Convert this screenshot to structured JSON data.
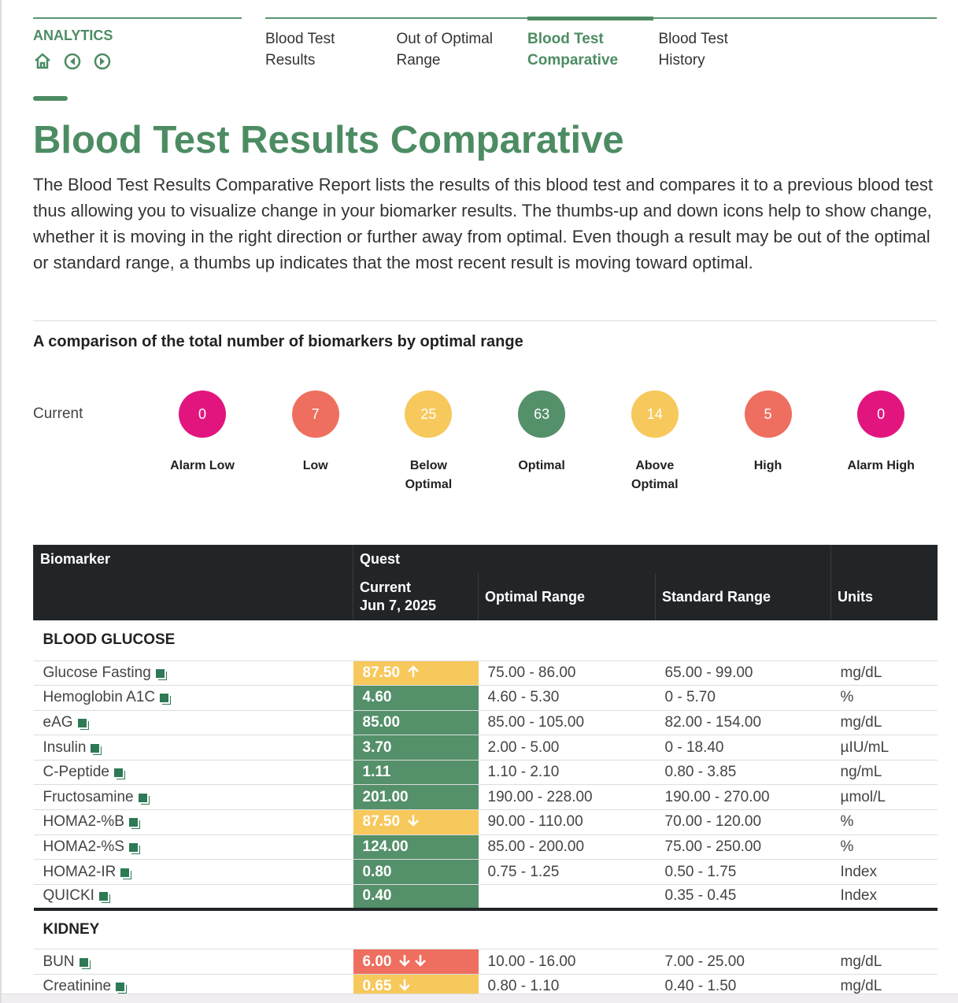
{
  "nav": {
    "section": "ANALYTICS",
    "tabs": [
      "Blood Test Results",
      "Out of Optimal Range",
      "Blood Test Comparative",
      "Blood Test History"
    ],
    "active_tab": 2
  },
  "header": {
    "title": "Blood Test Results Comparative",
    "description": "The Blood Test Results Comparative Report lists the results of this blood test and compares it to a previous blood test thus allowing you to visualize change in your biomarker results. The thumbs-up and down icons help to show change, whether it is moving in the right direction or further away from optimal. Even though a result may be out of the optimal or standard range, a thumbs up indicates that the most recent result is moving toward optimal."
  },
  "summary": {
    "title": "A comparison of the total number of biomarkers by optimal range",
    "row_label": "Current",
    "items": [
      {
        "label": "Alarm Low",
        "count": 0,
        "color": "#e2157f"
      },
      {
        "label": "Low",
        "count": 7,
        "color": "#ee6f5f"
      },
      {
        "label": "Below Optimal",
        "count": 25,
        "color": "#f7c85b"
      },
      {
        "label": "Optimal",
        "count": 63,
        "color": "#54906a"
      },
      {
        "label": "Above Optimal",
        "count": 14,
        "color": "#f7c85b"
      },
      {
        "label": "High",
        "count": 5,
        "color": "#ee6f5f"
      },
      {
        "label": "Alarm High",
        "count": 0,
        "color": "#e2157f"
      }
    ]
  },
  "table": {
    "columns": {
      "biomarker": "Biomarker",
      "lab": "Quest",
      "current": "Current",
      "date": "Jun 7, 2025",
      "optimal": "Optimal Range",
      "standard": "Standard Range",
      "units": "Units"
    },
    "sections": [
      {
        "name": "BLOOD GLUCOSE",
        "rows": [
          {
            "biomarker": "Glucose Fasting",
            "value": "87.50",
            "color": "#f7c85b",
            "arrows": [
              "up"
            ],
            "optimal": "75.00 - 86.00",
            "standard": "65.00 - 99.00",
            "units": "mg/dL"
          },
          {
            "biomarker": "Hemoglobin A1C",
            "value": "4.60",
            "color": "#54906a",
            "arrows": [],
            "optimal": "4.60 - 5.30",
            "standard": "0 - 5.70",
            "units": "%"
          },
          {
            "biomarker": "eAG",
            "value": "85.00",
            "color": "#54906a",
            "arrows": [],
            "optimal": "85.00 - 105.00",
            "standard": "82.00 - 154.00",
            "units": "mg/dL"
          },
          {
            "biomarker": "Insulin",
            "value": "3.70",
            "color": "#54906a",
            "arrows": [],
            "optimal": "2.00 - 5.00",
            "standard": "0 - 18.40",
            "units": "µIU/mL"
          },
          {
            "biomarker": "C-Peptide",
            "value": "1.11",
            "color": "#54906a",
            "arrows": [],
            "optimal": "1.10 - 2.10",
            "standard": "0.80 - 3.85",
            "units": "ng/mL"
          },
          {
            "biomarker": "Fructosamine",
            "value": "201.00",
            "color": "#54906a",
            "arrows": [],
            "optimal": "190.00 - 228.00",
            "standard": "190.00 - 270.00",
            "units": "µmol/L"
          },
          {
            "biomarker": "HOMA2-%B",
            "value": "87.50",
            "color": "#f7c85b",
            "arrows": [
              "down"
            ],
            "optimal": "90.00 - 110.00",
            "standard": "70.00 - 120.00",
            "units": "%"
          },
          {
            "biomarker": "HOMA2-%S",
            "value": "124.00",
            "color": "#54906a",
            "arrows": [],
            "optimal": "85.00 - 200.00",
            "standard": "75.00 - 250.00",
            "units": "%"
          },
          {
            "biomarker": "HOMA2-IR",
            "value": "0.80",
            "color": "#54906a",
            "arrows": [],
            "optimal": "0.75 - 1.25",
            "standard": "0.50 - 1.75",
            "units": "Index"
          },
          {
            "biomarker": "QUICKI",
            "value": "0.40",
            "color": "#54906a",
            "arrows": [],
            "optimal": null,
            "standard": "0.35 - 0.45",
            "units": "Index"
          }
        ]
      },
      {
        "name": "KIDNEY",
        "rows": [
          {
            "biomarker": "BUN",
            "value": "6.00",
            "color": "#ee6f5f",
            "arrows": [
              "down",
              "down"
            ],
            "optimal": "10.00 - 16.00",
            "standard": "7.00 - 25.00",
            "units": "mg/dL"
          },
          {
            "biomarker": "Creatinine",
            "value": "0.65",
            "color": "#f7c85b",
            "arrows": [
              "down"
            ],
            "optimal": "0.80 - 1.10",
            "standard": "0.40 - 1.50",
            "units": "mg/dL"
          }
        ]
      }
    ]
  }
}
